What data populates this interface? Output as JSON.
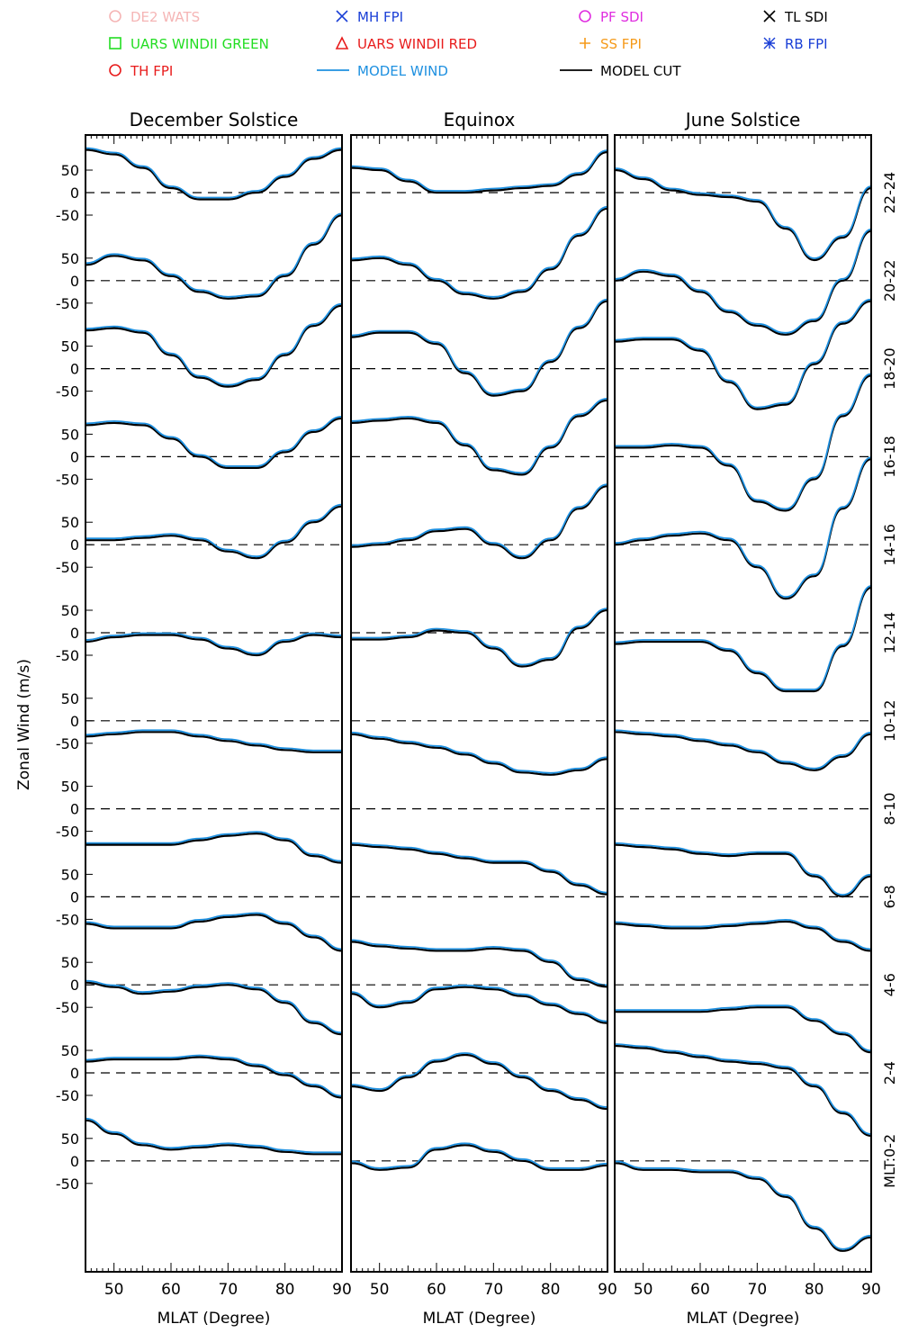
{
  "chart_data": {
    "type": "line",
    "ylabel": "Zonal Wind (m/s)",
    "xlabel": "MLAT (Degree)",
    "x_ticks": [
      "50",
      "60",
      "70",
      "80",
      "90"
    ],
    "xlim": [
      45,
      90
    ],
    "y_tick_labels": [
      "50",
      "0",
      "-50"
    ],
    "mlt_prefix": "MLT:",
    "panels": [
      {
        "title": "December Solstice"
      },
      {
        "title": "Equinox"
      },
      {
        "title": "June Solstice"
      }
    ],
    "rows": [
      {
        "mlt": "22-24"
      },
      {
        "mlt": "20-22"
      },
      {
        "mlt": "18-20"
      },
      {
        "mlt": "16-18"
      },
      {
        "mlt": "14-16"
      },
      {
        "mlt": "12-14"
      },
      {
        "mlt": "10-12"
      },
      {
        "mlt": "8-10"
      },
      {
        "mlt": "6-8"
      },
      {
        "mlt": "4-6"
      },
      {
        "mlt": "2-4"
      },
      {
        "mlt": "0-2"
      }
    ],
    "legend": [
      {
        "label": "DE2 WATS",
        "symbol": "circle",
        "color": "#f5b5b5"
      },
      {
        "label": "MH FPI",
        "symbol": "x",
        "color": "#1a3fd6"
      },
      {
        "label": "PF SDI",
        "symbol": "circle",
        "color": "#e02ee0"
      },
      {
        "label": "TL SDI",
        "symbol": "x",
        "color": "#000000"
      },
      {
        "label": "UARS WINDII GREEN",
        "symbol": "square",
        "color": "#22dd22"
      },
      {
        "label": "UARS WINDII RED",
        "symbol": "triangle",
        "color": "#e81c1c"
      },
      {
        "label": "SS FPI",
        "symbol": "plus",
        "color": "#f59a1a"
      },
      {
        "label": "RB FPI",
        "symbol": "asterisk",
        "color": "#1a3fd6"
      },
      {
        "label": "TH FPI",
        "symbol": "circle",
        "color": "#e81c1c"
      },
      {
        "label": "MODEL WIND",
        "symbol": "line",
        "color": "#1e90e0"
      },
      {
        "label": "MODEL CUT",
        "symbol": "line",
        "color": "#000000"
      }
    ],
    "curves": {
      "dec": [
        {
          "x": [
            45,
            50,
            55,
            60,
            65,
            70,
            75,
            80,
            85,
            90
          ],
          "y": [
            95,
            85,
            55,
            10,
            -15,
            -15,
            0,
            35,
            75,
            95
          ]
        },
        {
          "x": [
            45,
            50,
            55,
            60,
            65,
            70,
            75,
            80,
            85,
            90
          ],
          "y": [
            35,
            55,
            45,
            10,
            -25,
            -40,
            -35,
            10,
            80,
            145
          ]
        },
        {
          "x": [
            45,
            50,
            55,
            60,
            65,
            70,
            75,
            80,
            85,
            90
          ],
          "y": [
            85,
            90,
            80,
            30,
            -20,
            -40,
            -25,
            30,
            95,
            140
          ]
        },
        {
          "x": [
            45,
            50,
            55,
            60,
            65,
            70,
            75,
            80,
            85,
            90
          ],
          "y": [
            70,
            75,
            70,
            40,
            0,
            -25,
            -25,
            10,
            55,
            85
          ]
        },
        {
          "x": [
            45,
            50,
            55,
            60,
            65,
            70,
            75,
            80,
            85,
            90
          ],
          "y": [
            10,
            10,
            15,
            20,
            10,
            -15,
            -30,
            5,
            50,
            85
          ]
        },
        {
          "x": [
            45,
            50,
            55,
            60,
            65,
            70,
            75,
            80,
            85,
            90
          ],
          "y": [
            -20,
            -10,
            -5,
            -5,
            -15,
            -35,
            -50,
            -20,
            -5,
            -10
          ]
        },
        {
          "x": [
            45,
            50,
            55,
            60,
            65,
            70,
            75,
            80,
            85,
            90
          ],
          "y": [
            -35,
            -30,
            -25,
            -25,
            -35,
            -45,
            -55,
            -65,
            -70,
            -70
          ]
        },
        {
          "x": [
            45,
            50,
            55,
            60,
            65,
            70,
            75,
            80,
            85,
            90
          ],
          "y": [
            -80,
            -80,
            -80,
            -80,
            -70,
            -60,
            -55,
            -70,
            -105,
            -120
          ]
        },
        {
          "x": [
            45,
            50,
            55,
            60,
            65,
            70,
            75,
            80,
            85,
            90
          ],
          "y": [
            -60,
            -70,
            -70,
            -70,
            -55,
            -45,
            -40,
            -60,
            -90,
            -120
          ]
        },
        {
          "x": [
            45,
            50,
            55,
            60,
            65,
            70,
            75,
            80,
            85,
            90
          ],
          "y": [
            5,
            -5,
            -20,
            -15,
            -5,
            0,
            -10,
            -40,
            -85,
            -110
          ]
        },
        {
          "x": [
            45,
            50,
            55,
            60,
            65,
            70,
            75,
            80,
            85,
            90
          ],
          "y": [
            25,
            30,
            30,
            30,
            35,
            30,
            15,
            -5,
            -30,
            -55
          ]
        },
        {
          "x": [
            45,
            50,
            55,
            60,
            65,
            70,
            75,
            80,
            85,
            90
          ],
          "y": [
            90,
            60,
            35,
            25,
            30,
            35,
            30,
            20,
            15,
            15
          ]
        }
      ],
      "equ": [
        {
          "x": [
            45,
            50,
            55,
            60,
            65,
            70,
            75,
            80,
            85,
            90
          ],
          "y": [
            55,
            50,
            25,
            0,
            0,
            5,
            10,
            15,
            40,
            90
          ]
        },
        {
          "x": [
            45,
            50,
            55,
            60,
            65,
            70,
            75,
            80,
            85,
            90
          ],
          "y": [
            45,
            50,
            35,
            0,
            -30,
            -40,
            -25,
            25,
            100,
            160
          ]
        },
        {
          "x": [
            45,
            50,
            55,
            60,
            65,
            70,
            75,
            80,
            85,
            90
          ],
          "y": [
            70,
            80,
            80,
            55,
            -10,
            -60,
            -50,
            15,
            90,
            150
          ]
        },
        {
          "x": [
            45,
            50,
            55,
            60,
            65,
            70,
            75,
            80,
            85,
            90
          ],
          "y": [
            75,
            80,
            85,
            75,
            25,
            -30,
            -40,
            20,
            90,
            125
          ]
        },
        {
          "x": [
            45,
            50,
            55,
            60,
            65,
            70,
            75,
            80,
            85,
            90
          ],
          "y": [
            -5,
            0,
            10,
            30,
            35,
            0,
            -30,
            10,
            80,
            130
          ]
        },
        {
          "x": [
            45,
            50,
            55,
            60,
            65,
            70,
            75,
            80,
            85,
            90
          ],
          "y": [
            -15,
            -15,
            -10,
            5,
            0,
            -35,
            -75,
            -60,
            10,
            50
          ]
        },
        {
          "x": [
            45,
            50,
            55,
            60,
            65,
            70,
            75,
            80,
            85,
            90
          ],
          "y": [
            -30,
            -40,
            -50,
            -60,
            -75,
            -95,
            -115,
            -120,
            -110,
            -85
          ]
        },
        {
          "x": [
            45,
            50,
            55,
            60,
            65,
            70,
            75,
            80,
            85,
            90
          ],
          "y": [
            -80,
            -85,
            -90,
            -100,
            -110,
            -120,
            -120,
            -140,
            -170,
            -190
          ]
        },
        {
          "x": [
            45,
            50,
            55,
            60,
            65,
            70,
            75,
            80,
            85,
            90
          ],
          "y": [
            -100,
            -110,
            -115,
            -120,
            -120,
            -115,
            -120,
            -145,
            -185,
            -200
          ]
        },
        {
          "x": [
            45,
            50,
            55,
            60,
            65,
            70,
            75,
            80,
            85,
            90
          ],
          "y": [
            -20,
            -50,
            -40,
            -10,
            -5,
            -10,
            -25,
            -45,
            -65,
            -85
          ]
        },
        {
          "x": [
            45,
            50,
            55,
            60,
            65,
            70,
            75,
            80,
            85,
            90
          ],
          "y": [
            -30,
            -40,
            -10,
            25,
            40,
            20,
            -10,
            -40,
            -60,
            -80
          ]
        },
        {
          "x": [
            45,
            50,
            55,
            60,
            65,
            70,
            75,
            80,
            85,
            90
          ],
          "y": [
            -5,
            -20,
            -15,
            25,
            35,
            20,
            0,
            -20,
            -20,
            -10
          ]
        }
      ],
      "jun": [
        {
          "x": [
            45,
            50,
            55,
            60,
            65,
            70,
            75,
            80,
            85,
            90
          ],
          "y": [
            50,
            30,
            5,
            -5,
            -10,
            -20,
            -80,
            -150,
            -100,
            10
          ]
        },
        {
          "x": [
            45,
            50,
            55,
            60,
            65,
            70,
            75,
            80,
            85,
            90
          ],
          "y": [
            0,
            20,
            10,
            -25,
            -70,
            -100,
            -120,
            -90,
            0,
            110
          ]
        },
        {
          "x": [
            45,
            50,
            55,
            60,
            65,
            70,
            75,
            80,
            85,
            90
          ],
          "y": [
            60,
            65,
            65,
            40,
            -30,
            -90,
            -80,
            10,
            100,
            150
          ]
        },
        {
          "x": [
            45,
            50,
            55,
            60,
            65,
            70,
            75,
            80,
            85,
            90
          ],
          "y": [
            20,
            20,
            25,
            20,
            -20,
            -100,
            -120,
            -50,
            90,
            180
          ]
        },
        {
          "x": [
            45,
            50,
            55,
            60,
            65,
            70,
            75,
            80,
            85,
            90
          ],
          "y": [
            0,
            10,
            20,
            25,
            10,
            -50,
            -120,
            -70,
            80,
            190
          ]
        },
        {
          "x": [
            45,
            50,
            55,
            60,
            65,
            70,
            75,
            80,
            85,
            90
          ],
          "y": [
            -25,
            -20,
            -20,
            -20,
            -40,
            -90,
            -130,
            -130,
            -30,
            100
          ]
        },
        {
          "x": [
            45,
            50,
            55,
            60,
            65,
            70,
            75,
            80,
            85,
            90
          ],
          "y": [
            -25,
            -30,
            -35,
            -45,
            -55,
            -70,
            -95,
            -110,
            -80,
            -30
          ]
        },
        {
          "x": [
            45,
            50,
            55,
            60,
            65,
            70,
            75,
            80,
            85,
            90
          ],
          "y": [
            -80,
            -85,
            -90,
            -100,
            -105,
            -100,
            -100,
            -150,
            -195,
            -150
          ]
        },
        {
          "x": [
            45,
            50,
            55,
            60,
            65,
            70,
            75,
            80,
            85,
            90
          ],
          "y": [
            -60,
            -65,
            -70,
            -70,
            -65,
            -60,
            -55,
            -70,
            -100,
            -120
          ]
        },
        {
          "x": [
            45,
            50,
            55,
            60,
            65,
            70,
            75,
            80,
            85,
            90
          ],
          "y": [
            -60,
            -60,
            -60,
            -60,
            -55,
            -50,
            -50,
            -80,
            -110,
            -150
          ]
        },
        {
          "x": [
            45,
            50,
            55,
            60,
            65,
            70,
            75,
            80,
            85,
            90
          ],
          "y": [
            60,
            55,
            45,
            35,
            25,
            20,
            10,
            -30,
            -90,
            -140
          ]
        },
        {
          "x": [
            45,
            50,
            55,
            60,
            65,
            70,
            75,
            80,
            85,
            90
          ],
          "y": [
            -5,
            -20,
            -20,
            -25,
            -25,
            -40,
            -80,
            -150,
            -200,
            -170
          ]
        }
      ]
    }
  }
}
